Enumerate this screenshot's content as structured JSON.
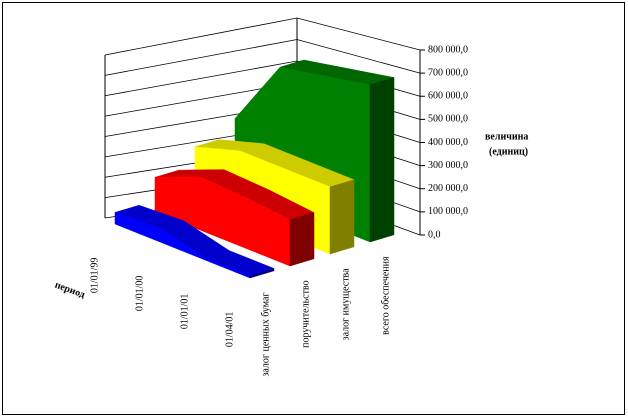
{
  "chart_data": {
    "type": "area3d",
    "ylabel": [
      "величина",
      "(единиц)"
    ],
    "depth_label": "период",
    "categories": [
      "01/01/99",
      "01/01/00",
      "01/01/01",
      "01/04/01"
    ],
    "series": [
      {
        "name": "залог ценных бумаг",
        "color": "#0000ff",
        "values": [
          50000,
          60000,
          10000,
          10000
        ]
      },
      {
        "name": "поручительство",
        "color": "#ff0000",
        "values": [
          150000,
          230000,
          220000,
          200000
        ]
      },
      {
        "name": "залог имущества",
        "color": "#ffff00",
        "values": [
          230000,
          290000,
          290000,
          290000
        ]
      },
      {
        "name": "всего обеспечения",
        "color": "#008000",
        "values": [
          300000,
          600000,
          640000,
          680000
        ]
      }
    ],
    "ylim": [
      0,
      800000
    ],
    "yticks": [
      {
        "value": 0,
        "label": "0,0"
      },
      {
        "value": 100000,
        "label": "100 000,0"
      },
      {
        "value": 200000,
        "label": "200 000,0"
      },
      {
        "value": 300000,
        "label": "300 000,0"
      },
      {
        "value": 400000,
        "label": "400 000,0"
      },
      {
        "value": 500000,
        "label": "500 000,0"
      },
      {
        "value": 600000,
        "label": "600 000,0"
      },
      {
        "value": 700000,
        "label": "700 000,0"
      },
      {
        "value": 800000,
        "label": "800 000,0"
      }
    ],
    "grid": true
  }
}
